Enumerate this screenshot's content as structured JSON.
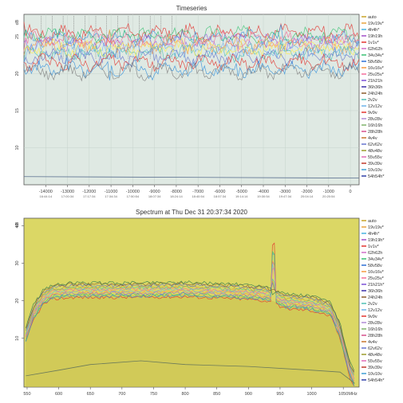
{
  "chart_data": [
    {
      "type": "line",
      "title": "Timeseries",
      "xlabel": "",
      "ylabel": "",
      "xlim": [
        -15000,
        400
      ],
      "ylim": [
        5,
        28
      ],
      "grid": true,
      "legend_position": "right",
      "x_ticks": [
        -14000,
        -13000,
        -12000,
        -11000,
        -10000,
        -9000,
        -8000,
        -7000,
        -6000,
        -5000,
        -4000,
        -3000,
        -2000,
        -1000,
        0
      ],
      "x_tick_labels": [
        "-14000",
        "-13000",
        "-12000",
        "-11000",
        "-10000",
        "-9000",
        "-8000",
        "-7000",
        "-6000",
        "-5000",
        "-4000",
        "-3000",
        "-2000",
        "-1000",
        "0"
      ],
      "x_time_labels": [
        "16:44:14",
        "17:00:34",
        "17:17:34",
        "17:34:34",
        "17:50:54",
        "18:07:34",
        "18:24:14",
        "18:40:54",
        "18:57:34",
        "19:14:14",
        "19:30:54",
        "19:47:34",
        "20:04:14",
        "20:20:54",
        ""
      ],
      "y_ticks": [
        10,
        15,
        20,
        25
      ],
      "y_tick_labels": [
        "10",
        "15",
        "20",
        "25"
      ],
      "y_unit_label": "dB",
      "series_bands": [
        {
          "color": "#e3342f",
          "y": 25.5
        },
        {
          "color": "#3490dc",
          "y": 24.8
        },
        {
          "color": "#38c172",
          "y": 25.2
        },
        {
          "color": "#9561e2",
          "y": 24.2
        },
        {
          "color": "#f6993f",
          "y": 23.8
        },
        {
          "color": "#6cb2eb",
          "y": 23.2
        },
        {
          "color": "#f66d9b",
          "y": 24.5
        },
        {
          "color": "#4dc0b5",
          "y": 22.8
        },
        {
          "color": "#ffed4a",
          "y": 23.5
        },
        {
          "color": "#6574cd",
          "y": 22.3
        },
        {
          "color": "#e3342f",
          "y": 21.5
        },
        {
          "color": "#3490dc",
          "y": 20.6
        },
        {
          "color": "#7f7f7f",
          "y": 20.3
        }
      ],
      "low_series": {
        "color": "#5a6f8f",
        "y": 6.1
      },
      "legend": [
        "auto",
        "19v19v*",
        "4h4h*",
        "19h19h",
        "1v1v*",
        "62h62h",
        "34v34v*",
        "58v58v",
        "16v16v*",
        "25v25v*",
        "21h21h",
        "36h36h",
        "24h24h",
        "2v2v",
        "12v12v",
        "9v9v",
        "28v28v",
        "16h16h",
        "28h28h",
        "4v4v",
        "62v62v",
        "48v48v",
        "55v55v",
        "39v39v",
        "10v10v",
        "54h54h*"
      ]
    },
    {
      "type": "line",
      "title": "Spectrum at Thu Dec 31 20:37:34 2020",
      "xlabel": "",
      "ylabel": "",
      "xlim": [
        545,
        1075
      ],
      "ylim": [
        -3,
        42
      ],
      "grid": false,
      "legend_position": "right",
      "x_ticks": [
        550,
        600,
        650,
        700,
        750,
        800,
        850,
        900,
        950,
        1000,
        1050
      ],
      "x_tick_labels": [
        "550",
        "600",
        "650",
        "700",
        "750",
        "800",
        "850",
        "900",
        "950",
        "1000",
        "1050"
      ],
      "x_unit_label": "MHz",
      "y_ticks": [
        10,
        20,
        30,
        40
      ],
      "y_tick_labels": [
        "10",
        "20",
        "30",
        "40"
      ],
      "y_unit_label": "dB",
      "spectrum_envelope": [
        {
          "x": 548,
          "y": 11
        },
        {
          "x": 560,
          "y": 17
        },
        {
          "x": 575,
          "y": 21
        },
        {
          "x": 590,
          "y": 22.5
        },
        {
          "x": 620,
          "y": 23
        },
        {
          "x": 700,
          "y": 23
        },
        {
          "x": 800,
          "y": 23.2
        },
        {
          "x": 900,
          "y": 22.5
        },
        {
          "x": 930,
          "y": 22
        },
        {
          "x": 960,
          "y": 20
        },
        {
          "x": 1000,
          "y": 19.5
        },
        {
          "x": 1030,
          "y": 18
        },
        {
          "x": 1045,
          "y": 12
        },
        {
          "x": 1060,
          "y": 2
        },
        {
          "x": 1068,
          "y": -1
        }
      ],
      "spike": {
        "x": 940,
        "y": 36
      },
      "noise_floor": [
        {
          "x": 548,
          "y": 0
        },
        {
          "x": 600,
          "y": 1.5
        },
        {
          "x": 650,
          "y": 3
        },
        {
          "x": 730,
          "y": 4
        },
        {
          "x": 800,
          "y": 3
        },
        {
          "x": 900,
          "y": 2.5
        },
        {
          "x": 1000,
          "y": 1.5
        },
        {
          "x": 1045,
          "y": 1
        },
        {
          "x": 1068,
          "y": -2
        }
      ],
      "series_colors": [
        "#e3342f",
        "#3490dc",
        "#38c172",
        "#9561e2",
        "#f6993f",
        "#6cb2eb",
        "#f66d9b",
        "#4dc0b5",
        "#c9a227",
        "#6574cd",
        "#8b5a2b",
        "#2d7a4f"
      ],
      "legend": [
        "auto",
        "19v19v*",
        "4h4h*",
        "19h19h*",
        "1v1v*",
        "62h62h",
        "34v34v*",
        "58v58v",
        "16v16v*",
        "25v25v*",
        "21h21h*",
        "36h36h",
        "24h24h",
        "2v2v",
        "12v12v",
        "9v9v",
        "28v28v",
        "16h16h",
        "28h28h",
        "4v4v",
        "62v62v",
        "48v48v",
        "55v55v",
        "39v39v",
        "10v10v",
        "54h54h*"
      ]
    }
  ],
  "legend_colors": [
    "#c9a227",
    "#e8a33d",
    "#45b3e0",
    "#a14fc9",
    "#e3342f",
    "#d06ec9",
    "#38c172",
    "#2a6fd6",
    "#f6993f",
    "#f66d9b",
    "#7b4fd6",
    "#3b2fa8",
    "#8b5a2b",
    "#4dc0b5",
    "#6cb2eb",
    "#e3342f",
    "#b08bd6",
    "#7fb36a",
    "#d64f8a",
    "#c9742b",
    "#6574cd",
    "#9a9a2b",
    "#e16ab5",
    "#c0392b",
    "#3c9fd6",
    "#2f3fa8"
  ]
}
